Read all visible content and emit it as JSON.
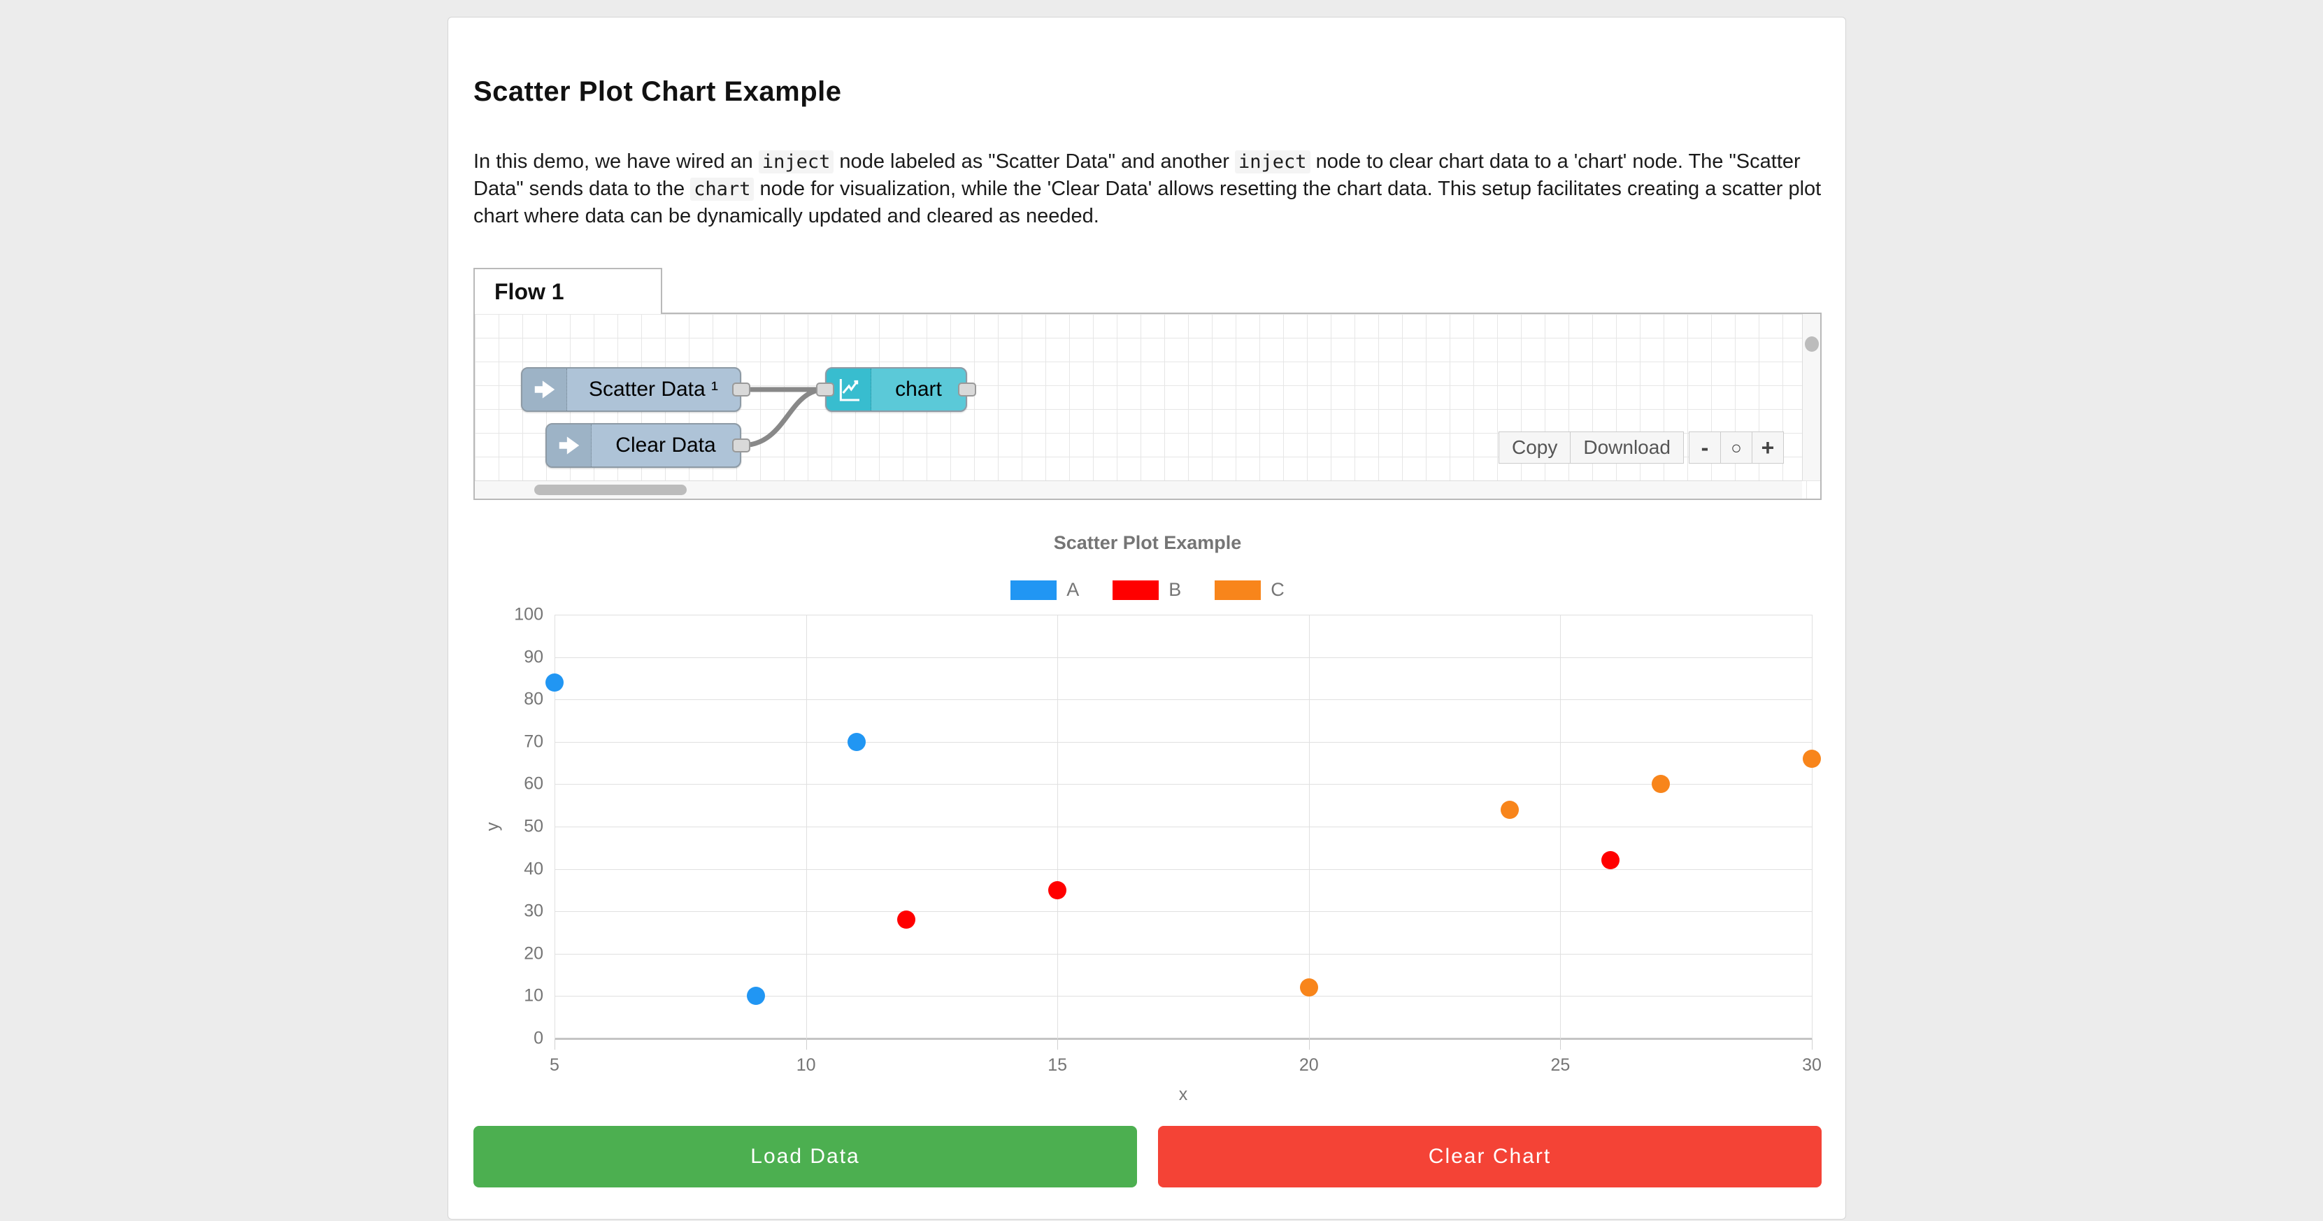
{
  "header": {
    "title": "Scatter Plot Chart Example"
  },
  "description": {
    "segments": [
      {
        "t": "text",
        "v": "In this demo, we have wired an "
      },
      {
        "t": "code",
        "v": "inject"
      },
      {
        "t": "text",
        "v": " node labeled as \"Scatter Data\" and another "
      },
      {
        "t": "code",
        "v": "inject"
      },
      {
        "t": "text",
        "v": " node to clear chart data to a 'chart' node. The \"Scatter Data\" sends data to the "
      },
      {
        "t": "code",
        "v": "chart"
      },
      {
        "t": "text",
        "v": " node for visualization, while the 'Clear Data' allows resetting the chart data. This setup facilitates creating a scatter plot chart where data can be dynamically updated and cleared as needed."
      }
    ]
  },
  "flow_editor": {
    "tab_label": "Flow 1",
    "nodes": [
      {
        "id": "scatter-data",
        "type": "inject",
        "label": "Scatter Data ¹"
      },
      {
        "id": "clear-data",
        "type": "inject",
        "label": "Clear Data"
      },
      {
        "id": "chart",
        "type": "chart-node",
        "label": "chart"
      }
    ],
    "toolbar": {
      "copy_label": "Copy",
      "download_label": "Download"
    },
    "zoom_controls": {
      "zoom_out": "-",
      "zoom_reset": "○",
      "zoom_in": "+"
    },
    "colors": {
      "inject_body": "#aec3d7",
      "inject_icon_bg": "#9db3c6",
      "chart_body": "#5bc9d8",
      "chart_icon_bg": "#38bdcf",
      "wire": "#888888"
    }
  },
  "chart_data": {
    "type": "scatter",
    "title": "Scatter Plot Example",
    "xlabel": "x",
    "ylabel": "y",
    "xlim": [
      5,
      30
    ],
    "ylim": [
      0,
      100
    ],
    "x_ticks": [
      5,
      10,
      15,
      20,
      25,
      30
    ],
    "y_ticks": [
      0,
      10,
      20,
      30,
      40,
      50,
      60,
      70,
      80,
      90,
      100
    ],
    "grid": true,
    "legend_position": "top",
    "series": [
      {
        "name": "A",
        "color": "#2196F3",
        "points": [
          [
            5,
            84
          ],
          [
            9,
            10
          ],
          [
            11,
            70
          ]
        ]
      },
      {
        "name": "B",
        "color": "#FF0000",
        "points": [
          [
            12,
            28
          ],
          [
            15,
            35
          ],
          [
            26,
            42
          ]
        ]
      },
      {
        "name": "C",
        "color": "#F8851B",
        "points": [
          [
            20,
            12
          ],
          [
            24,
            54
          ],
          [
            27,
            60
          ],
          [
            30,
            66
          ]
        ]
      }
    ]
  },
  "actions": {
    "load_label": "Load Data",
    "clear_label": "Clear Chart",
    "load_color": "#4CAF50",
    "clear_color": "#F44336"
  }
}
